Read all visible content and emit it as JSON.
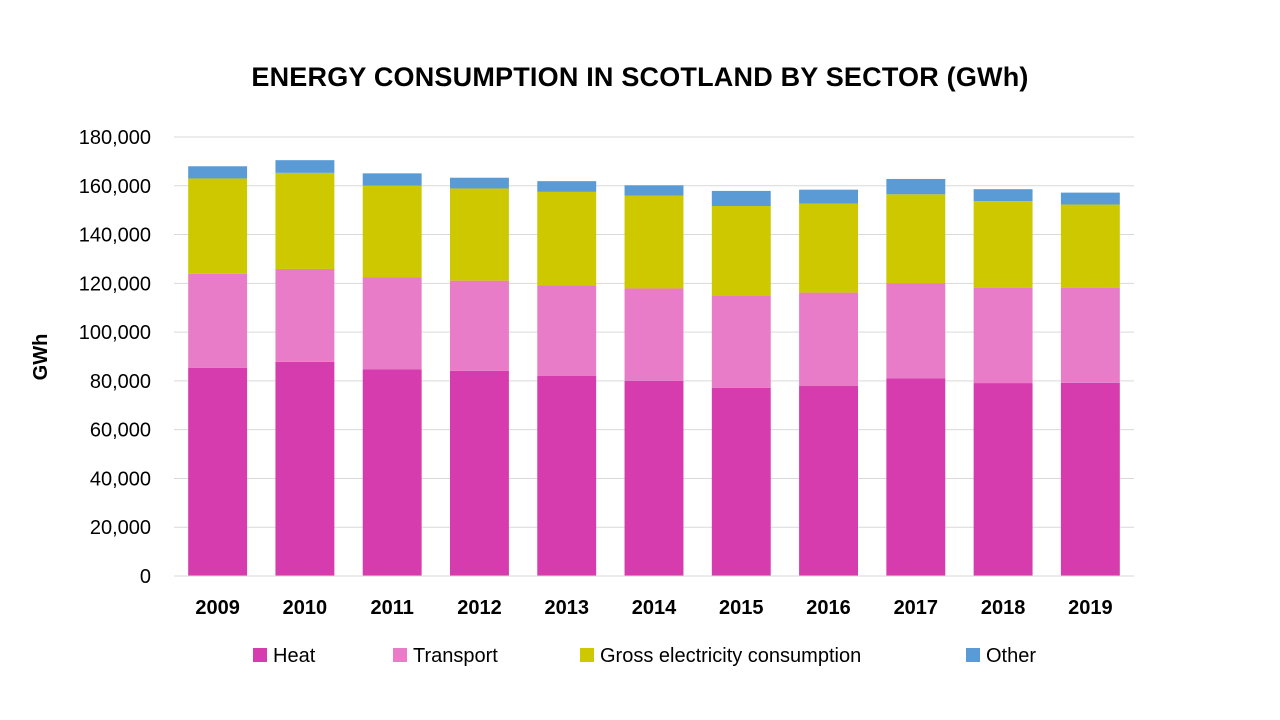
{
  "chart_data": {
    "type": "bar",
    "stacked": true,
    "title": "ENERGY CONSUMPTION IN SCOTLAND BY SECTOR (GWh)",
    "xlabel": "",
    "ylabel": "GWh",
    "ylim": [
      0,
      180000
    ],
    "yticks": [
      0,
      20000,
      40000,
      60000,
      80000,
      100000,
      120000,
      140000,
      160000,
      180000
    ],
    "ytick_labels": [
      "0",
      "20,000",
      "40,000",
      "60,000",
      "80,000",
      "100,000",
      "120,000",
      "140,000",
      "160,000",
      "180,000"
    ],
    "grid": true,
    "legend_position": "bottom",
    "categories": [
      "2009",
      "2010",
      "2011",
      "2012",
      "2013",
      "2014",
      "2015",
      "2016",
      "2017",
      "2018",
      "2019"
    ],
    "series": [
      {
        "name": "Heat",
        "color": "#d63cad",
        "values": [
          85300,
          87800,
          84800,
          84100,
          82000,
          80000,
          77200,
          77900,
          81000,
          79100,
          79200
        ]
      },
      {
        "name": "Transport",
        "color": "#e87cc8",
        "values": [
          38600,
          38100,
          37600,
          37000,
          37100,
          37900,
          37600,
          38300,
          39100,
          39000,
          38900
        ]
      },
      {
        "name": "Gross electricity consumption",
        "color": "#cdc800",
        "values": [
          39100,
          39400,
          37700,
          37800,
          38400,
          38000,
          36900,
          36500,
          36400,
          35600,
          34200
        ]
      },
      {
        "name": "Other",
        "color": "#5b9bd5",
        "values": [
          5000,
          5200,
          5000,
          4400,
          4400,
          4300,
          6200,
          5700,
          6300,
          4900,
          4900
        ]
      }
    ]
  }
}
